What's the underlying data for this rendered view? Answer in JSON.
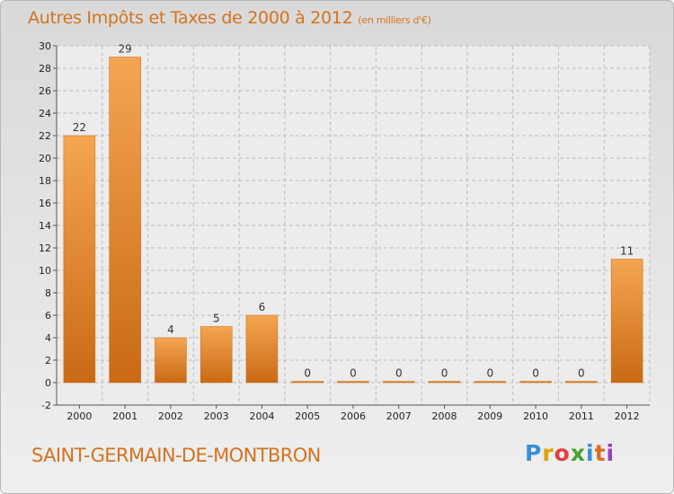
{
  "title": "Autres Impôts et Taxes de 2000 à 2012",
  "unit": "(en milliers d'€)",
  "commune": "SAINT-GERMAIN-DE-MONTBRON",
  "brand": {
    "letters": [
      "P",
      "r",
      "o",
      "x",
      "i",
      "t",
      "i"
    ],
    "colors": [
      "#3a8fd6",
      "#e0a000",
      "#e04040",
      "#4aa030",
      "#3a8fd6",
      "#e06a20",
      "#9a3fc0"
    ]
  },
  "colors": {
    "bar_light": "#f5a552",
    "bar_dark": "#c96a14",
    "title": "#d4731f",
    "grid": "#bdbdbd"
  },
  "chart_data": {
    "type": "bar",
    "categories": [
      "2000",
      "2001",
      "2002",
      "2003",
      "2004",
      "2005",
      "2006",
      "2007",
      "2008",
      "2009",
      "2010",
      "2011",
      "2012"
    ],
    "values": [
      22,
      29,
      4,
      5,
      6,
      0,
      0,
      0,
      0,
      0,
      0,
      0,
      11
    ],
    "value_labels": [
      "22",
      "29",
      "4",
      "5",
      "6",
      "0",
      "0",
      "0",
      "0",
      "0",
      "0",
      "0",
      "11"
    ],
    "ylim": [
      -2,
      30
    ],
    "yticks": [
      -2,
      0,
      2,
      4,
      6,
      8,
      10,
      12,
      14,
      16,
      18,
      20,
      22,
      24,
      26,
      28,
      30
    ],
    "grid": true
  }
}
